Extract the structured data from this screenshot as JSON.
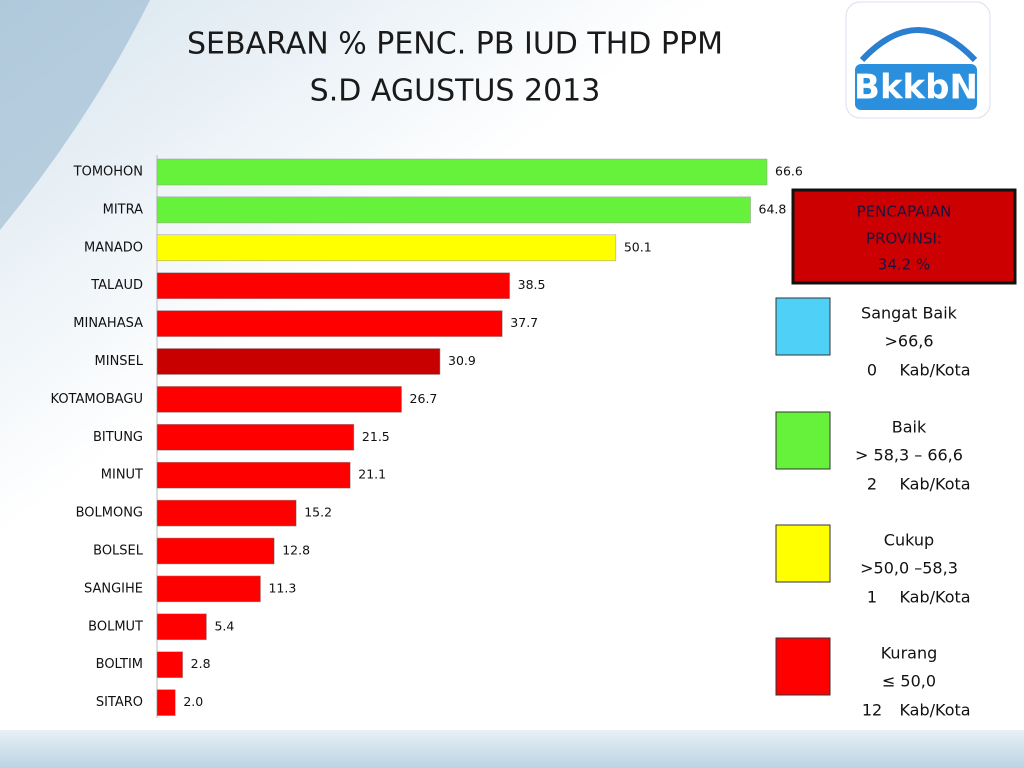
{
  "chart_data": {
    "type": "bar",
    "orientation": "horizontal",
    "title": [
      "SEBARAN % PENC. PB IUD THD PPM",
      "S.D AGUSTUS 2013"
    ],
    "logo_text": "BkkbN",
    "categories": [
      "TOMOHON",
      "MITRA",
      "MANADO",
      "TALAUD",
      "MINAHASA",
      "MINSEL",
      "KOTAMOBAGU",
      "BITUNG",
      "MINUT",
      "BOLMONG",
      "BOLSEL",
      "SANGIHE",
      "BOLMUT",
      "BOLTIM",
      "SITARO"
    ],
    "values": [
      66.6,
      64.8,
      50.1,
      38.5,
      37.7,
      30.9,
      26.7,
      21.5,
      21.1,
      15.2,
      12.8,
      11.3,
      5.4,
      2.8,
      2.0
    ],
    "value_labels": [
      "66.6",
      "64.8",
      "50.1",
      "38.5",
      "37.7",
      "30.9",
      "26.7",
      "21.5",
      "21.1",
      "15.2",
      "12.8",
      "11.3",
      "5.4",
      "2.8",
      "2.0"
    ],
    "colors": [
      "#66f23a",
      "#66f23a",
      "#ffff00",
      "#ff0000",
      "#ff0000",
      "#c80000",
      "#ff0000",
      "#ff0000",
      "#ff0000",
      "#ff0000",
      "#ff0000",
      "#ff0000",
      "#ff0000",
      "#ff0000",
      "#ff0000"
    ],
    "xlim": [
      0,
      66.6
    ],
    "annotation": [
      "PENCAPAIAN",
      "PROVINSI:",
      "34.2 %"
    ],
    "legend": [
      {
        "label": "Sangat Baik",
        "range": ">66,6",
        "count": 0,
        "unit": "Kab/Kota",
        "color": "#4fd0f6"
      },
      {
        "label": "Baik",
        "range": "> 58,3 – 66,6",
        "count": 2,
        "unit": "Kab/Kota",
        "color": "#66f23a"
      },
      {
        "label": "Cukup",
        "range": ">50,0 –58,3",
        "count": 1,
        "unit": "Kab/Kota",
        "color": "#ffff00"
      },
      {
        "label": "Kurang",
        "range": "≤ 50,0",
        "count": 12,
        "unit": "Kab/Kota",
        "color": "#ff0000"
      }
    ]
  }
}
